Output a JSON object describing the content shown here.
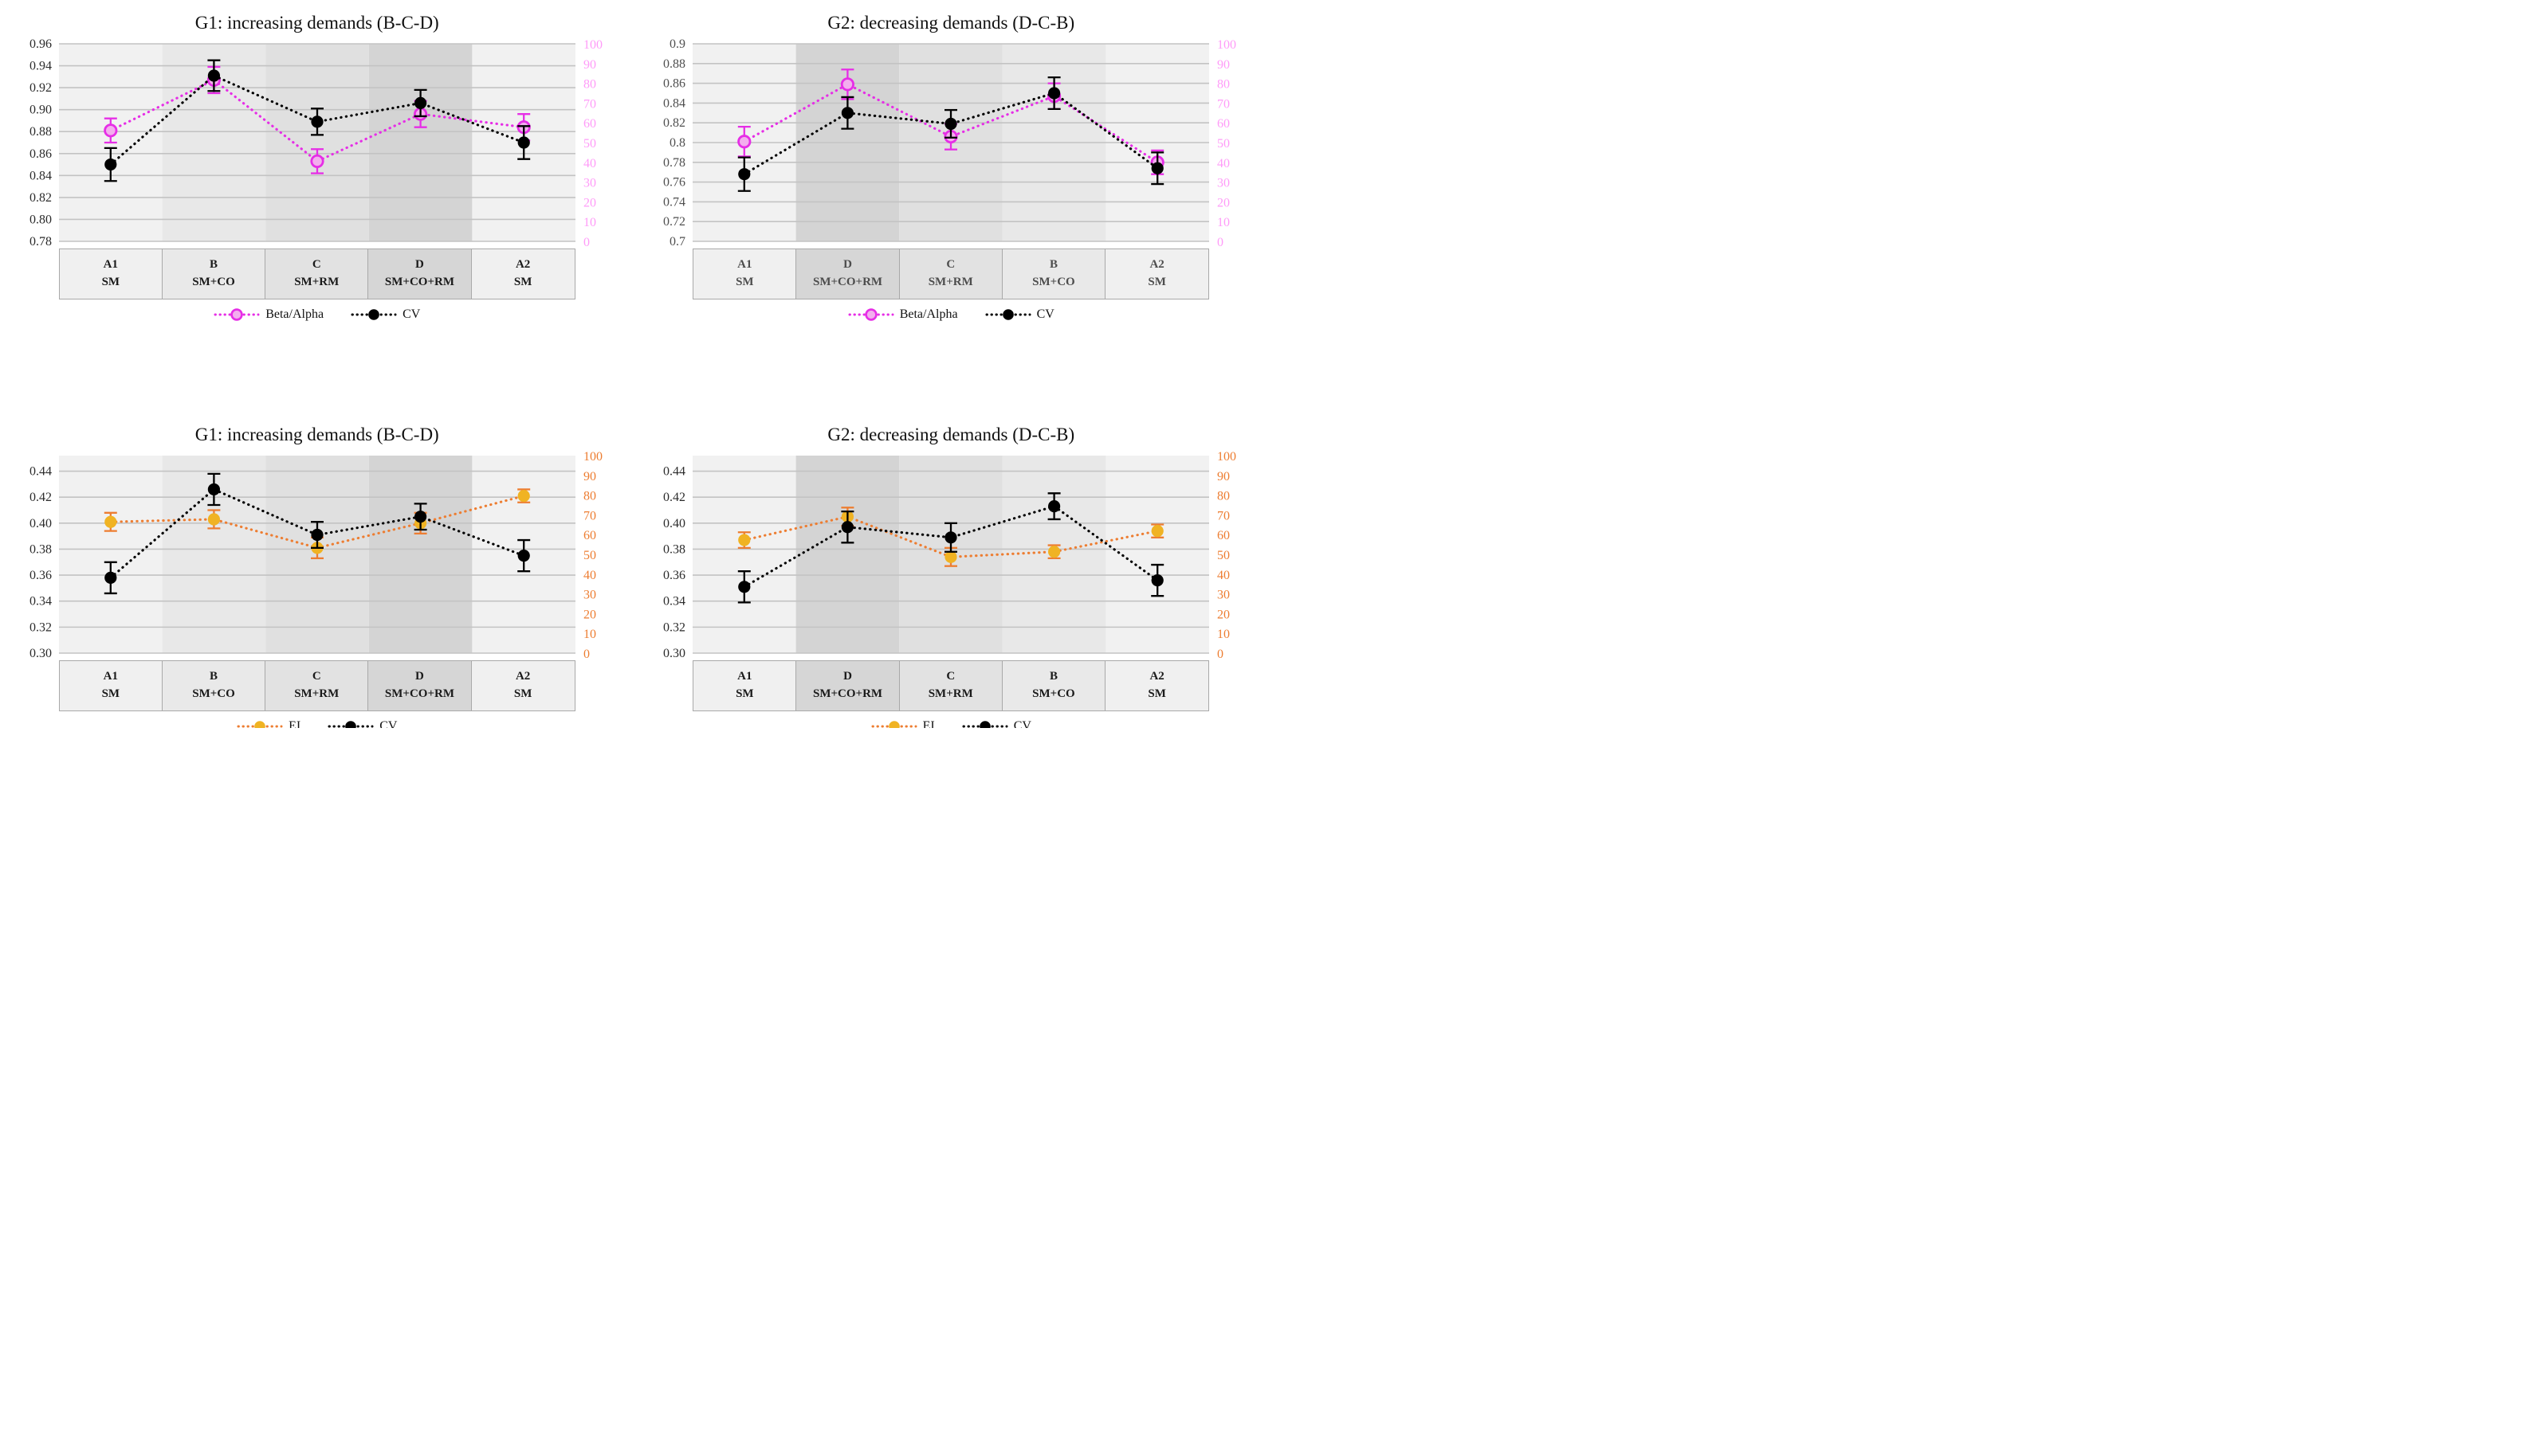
{
  "page": {
    "background": "#ffffff"
  },
  "colors": {
    "grid_line": "#c3c3c3",
    "table_border": "#a9a9a9",
    "beta_alpha_stroke": "#e62ee6",
    "beta_alpha_fill": "#f3aeee",
    "pink_axis": "#ff9bf8",
    "ei_stroke": "#ed7d31",
    "ei_fill": "#f0b323",
    "orange_axis": "#ed7d31",
    "cv_color": "#000000",
    "band_sm": "#f1f1f1",
    "band_sm_co": "#e8e8e8",
    "band_sm_rm": "#e0e0e0",
    "band_sm_co_rm": "#d4d4d4"
  },
  "chart_data": [
    {
      "type": "line",
      "title": "G1: increasing demands (B-C-D)",
      "grid": true,
      "legend_position": "bottom",
      "axis_text_color": "#2b2b2b",
      "category_text_color": "#1a1a1a",
      "y_axis": {
        "min": 0.78,
        "max": 0.96,
        "top_edge": 0.96,
        "tick_labels": [
          "0.96",
          "0.94",
          "0.92",
          "0.90",
          "0.88",
          "0.86",
          "0.84",
          "0.82",
          "0.80",
          "0.78"
        ]
      },
      "y2_axis": {
        "min": 0,
        "max": 100,
        "labels": [
          "100",
          "90",
          "80",
          "70",
          "60",
          "50",
          "40",
          "30",
          "20",
          "10",
          "0"
        ],
        "color": "#ff9bf8"
      },
      "categories": [
        {
          "code": "A1",
          "cond": "SM",
          "band": "#f1f1f1",
          "cell": "#f0f0f0"
        },
        {
          "code": "B",
          "cond": "SM+CO",
          "band": "#e8e8e8",
          "cell": "#e9e9e9"
        },
        {
          "code": "C",
          "cond": "SM+RM",
          "band": "#e0e0e0",
          "cell": "#e2e2e2"
        },
        {
          "code": "D",
          "cond": "SM+CO+RM",
          "band": "#d4d4d4",
          "cell": "#d6d6d6"
        },
        {
          "code": "A2",
          "cond": "SM",
          "band": "#f1f1f1",
          "cell": "#f0f0f0"
        }
      ],
      "series": [
        {
          "name": "Beta/Alpha",
          "stroke": "#e62ee6",
          "fill": "#f3aeee",
          "open": true,
          "values": [
            0.881,
            0.927,
            0.853,
            0.896,
            0.884
          ],
          "err": [
            0.011,
            0.012,
            0.011,
            0.012,
            0.012
          ]
        },
        {
          "name": "CV",
          "stroke": "#000000",
          "fill": "#000000",
          "open": false,
          "values": [
            0.85,
            0.931,
            0.889,
            0.906,
            0.87
          ],
          "err": [
            0.015,
            0.014,
            0.012,
            0.012,
            0.015
          ]
        }
      ]
    },
    {
      "type": "line",
      "title": "G2: decreasing demands (D-C-B)",
      "grid": true,
      "legend_position": "bottom",
      "axis_text_color": "#4f4f4f",
      "category_text_color": "#4d4d4d",
      "y_axis": {
        "min": 0.7,
        "max": 0.9,
        "top_edge": 0.9,
        "tick_labels": [
          "0.9",
          "0.88",
          "0.86",
          "0.84",
          "0.82",
          "0.8",
          "0.78",
          "0.76",
          "0.74",
          "0.72",
          "0.7"
        ]
      },
      "y2_axis": {
        "min": 0,
        "max": 100,
        "labels": [
          "100",
          "90",
          "80",
          "70",
          "60",
          "50",
          "40",
          "30",
          "20",
          "10",
          "0"
        ],
        "color": "#ff9bf8"
      },
      "categories": [
        {
          "code": "A1",
          "cond": "SM",
          "band": "#f1f1f1",
          "cell": "#f0f0f0"
        },
        {
          "code": "D",
          "cond": "SM+CO+RM",
          "band": "#d4d4d4",
          "cell": "#d6d6d6"
        },
        {
          "code": "C",
          "cond": "SM+RM",
          "band": "#e0e0e0",
          "cell": "#e2e2e2"
        },
        {
          "code": "B",
          "cond": "SM+CO",
          "band": "#e8e8e8",
          "cell": "#e9e9e9"
        },
        {
          "code": "A2",
          "cond": "SM",
          "band": "#f1f1f1",
          "cell": "#f0f0f0"
        }
      ],
      "series": [
        {
          "name": "Beta/Alpha",
          "stroke": "#e62ee6",
          "fill": "#f3aeee",
          "open": true,
          "values": [
            0.801,
            0.859,
            0.806,
            0.847,
            0.78
          ],
          "err": [
            0.015,
            0.015,
            0.013,
            0.013,
            0.012
          ]
        },
        {
          "name": "CV",
          "stroke": "#000000",
          "fill": "#000000",
          "open": false,
          "values": [
            0.768,
            0.83,
            0.819,
            0.85,
            0.774
          ],
          "err": [
            0.017,
            0.016,
            0.014,
            0.016,
            0.016
          ]
        }
      ]
    },
    {
      "type": "line",
      "title": "G1: increasing demands (B-C-D)",
      "grid": true,
      "legend_position": "bottom",
      "axis_text_color": "#2b2b2b",
      "category_text_color": "#1a1a1a",
      "y_axis": {
        "min": 0.3,
        "max": 0.44,
        "top_edge": 0.452,
        "tick_labels": [
          "0.44",
          "0.42",
          "0.40",
          "0.38",
          "0.36",
          "0.34",
          "0.32",
          "0.30"
        ]
      },
      "y2_axis": {
        "min": 0,
        "max": 100,
        "labels": [
          "100",
          "90",
          "80",
          "70",
          "60",
          "50",
          "40",
          "30",
          "20",
          "10",
          "0"
        ],
        "color": "#ed7d31"
      },
      "categories": [
        {
          "code": "A1",
          "cond": "SM",
          "band": "#f1f1f1",
          "cell": "#f0f0f0"
        },
        {
          "code": "B",
          "cond": "SM+CO",
          "band": "#e8e8e8",
          "cell": "#e9e9e9"
        },
        {
          "code": "C",
          "cond": "SM+RM",
          "band": "#e0e0e0",
          "cell": "#e2e2e2"
        },
        {
          "code": "D",
          "cond": "SM+CO+RM",
          "band": "#d4d4d4",
          "cell": "#d6d6d6"
        },
        {
          "code": "A2",
          "cond": "SM",
          "band": "#f1f1f1",
          "cell": "#f0f0f0"
        }
      ],
      "series": [
        {
          "name": "EI",
          "stroke": "#ed7d31",
          "fill": "#f0b323",
          "open": false,
          "values": [
            0.401,
            0.403,
            0.381,
            0.4,
            0.421
          ],
          "err": [
            0.007,
            0.007,
            0.008,
            0.008,
            0.005
          ]
        },
        {
          "name": "CV",
          "stroke": "#000000",
          "fill": "#000000",
          "open": false,
          "values": [
            0.358,
            0.426,
            0.391,
            0.405,
            0.375
          ],
          "err": [
            0.012,
            0.012,
            0.01,
            0.01,
            0.012
          ]
        }
      ]
    },
    {
      "type": "line",
      "title": "G2: decreasing demands (D-C-B)",
      "grid": true,
      "legend_position": "bottom",
      "axis_text_color": "#2b2b2b",
      "category_text_color": "#1a1a1a",
      "y_axis": {
        "min": 0.3,
        "max": 0.44,
        "top_edge": 0.452,
        "tick_labels": [
          "0.44",
          "0.42",
          "0.40",
          "0.38",
          "0.36",
          "0.34",
          "0.32",
          "0.30"
        ]
      },
      "y2_axis": {
        "min": 0,
        "max": 100,
        "labels": [
          "100",
          "90",
          "80",
          "70",
          "60",
          "50",
          "40",
          "30",
          "20",
          "10",
          "0"
        ],
        "color": "#ed7d31"
      },
      "categories": [
        {
          "code": "A1",
          "cond": "SM",
          "band": "#f1f1f1",
          "cell": "#f0f0f0"
        },
        {
          "code": "D",
          "cond": "SM+CO+RM",
          "band": "#d4d4d4",
          "cell": "#d6d6d6"
        },
        {
          "code": "C",
          "cond": "SM+RM",
          "band": "#e0e0e0",
          "cell": "#e2e2e2"
        },
        {
          "code": "B",
          "cond": "SM+CO",
          "band": "#e8e8e8",
          "cell": "#e9e9e9"
        },
        {
          "code": "A2",
          "cond": "SM",
          "band": "#f1f1f1",
          "cell": "#f0f0f0"
        }
      ],
      "series": [
        {
          "name": "EI",
          "stroke": "#ed7d31",
          "fill": "#f0b323",
          "open": false,
          "values": [
            0.387,
            0.405,
            0.374,
            0.378,
            0.394
          ],
          "err": [
            0.006,
            0.007,
            0.007,
            0.005,
            0.005
          ]
        },
        {
          "name": "CV",
          "stroke": "#000000",
          "fill": "#000000",
          "open": false,
          "values": [
            0.351,
            0.397,
            0.389,
            0.413,
            0.356
          ],
          "err": [
            0.012,
            0.012,
            0.011,
            0.01,
            0.012
          ]
        }
      ]
    }
  ]
}
